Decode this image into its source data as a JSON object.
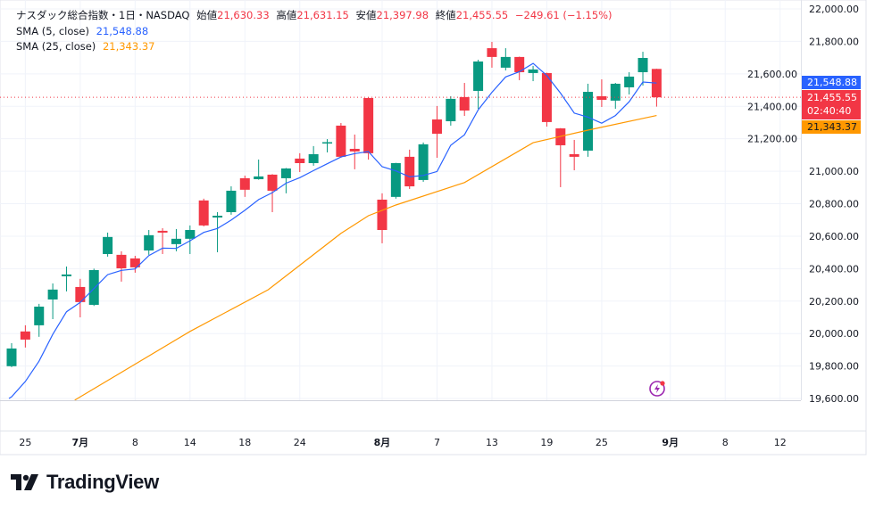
{
  "header": {
    "symbol": "ナスダック総合指数・1日・NASDAQ",
    "open_label": "始値",
    "open": "21,630.33",
    "high_label": "高値",
    "high": "21,631.15",
    "low_label": "安値",
    "low": "21,397.98",
    "close_label": "終値",
    "close": "21,455.55",
    "change": "−249.61 (−1.15%)"
  },
  "indicators": [
    {
      "name": "SMA (5, close)",
      "value": "21,548.88",
      "color": "#2962ff"
    },
    {
      "name": "SMA (25, close)",
      "value": "21,343.37",
      "color": "#ff9800"
    }
  ],
  "price_axis": {
    "ticks": [
      "22,000.00",
      "21,800.00",
      "21,600.00",
      "21,400.00",
      "21,200.00",
      "21,000.00",
      "20,800.00",
      "20,600.00",
      "20,400.00",
      "20,200.00",
      "20,000.00",
      "19,800.00",
      "19,600.00"
    ],
    "last_price_label": "21,455.55",
    "countdown": "02:40:40",
    "sma5_label": "21,548.88",
    "sma25_label": "21,343.37"
  },
  "time_axis": [
    {
      "label": "25",
      "index": 1,
      "bold": false
    },
    {
      "label": "7月",
      "index": 5,
      "bold": true
    },
    {
      "label": "8",
      "index": 9,
      "bold": false
    },
    {
      "label": "14",
      "index": 13,
      "bold": false
    },
    {
      "label": "18",
      "index": 17,
      "bold": false
    },
    {
      "label": "24",
      "index": 21,
      "bold": false
    },
    {
      "label": "8月",
      "index": 27,
      "bold": true
    },
    {
      "label": "7",
      "index": 31,
      "bold": false
    },
    {
      "label": "13",
      "index": 35,
      "bold": false
    },
    {
      "label": "19",
      "index": 39,
      "bold": false
    },
    {
      "label": "25",
      "index": 43,
      "bold": false
    },
    {
      "label": "9月",
      "index": 48,
      "bold": true
    },
    {
      "label": "8",
      "index": 52,
      "bold": false
    },
    {
      "label": "12",
      "index": 56,
      "bold": false
    }
  ],
  "colors": {
    "up": "#089981",
    "down": "#f23645",
    "sma5": "#2962ff",
    "sma25": "#ff9800",
    "grid": "#f0f3fa"
  },
  "chart_data": {
    "type": "candlestick",
    "ylim": [
      19600,
      22000
    ],
    "ohlc": [
      [
        19799,
        19941,
        19793,
        19908
      ],
      [
        20013,
        20051,
        19914,
        19963
      ],
      [
        20051,
        20183,
        19980,
        20166
      ],
      [
        20210,
        20309,
        20089,
        20271
      ],
      [
        20353,
        20413,
        20260,
        20364
      ],
      [
        20287,
        20337,
        20100,
        20194
      ],
      [
        20177,
        20400,
        20170,
        20391
      ],
      [
        20490,
        20622,
        20474,
        20595
      ],
      [
        20485,
        20507,
        20320,
        20402
      ],
      [
        20463,
        20479,
        20375,
        20408
      ],
      [
        20512,
        20638,
        20485,
        20606
      ],
      [
        20633,
        20649,
        20490,
        20622
      ],
      [
        20551,
        20644,
        20507,
        20584
      ],
      [
        20584,
        20666,
        20490,
        20638
      ],
      [
        20820,
        20831,
        20660,
        20666
      ],
      [
        20715,
        20748,
        20501,
        20726
      ],
      [
        20748,
        20907,
        20732,
        20880
      ],
      [
        20957,
        20973,
        20842,
        20886
      ],
      [
        20951,
        21072,
        20948,
        20968
      ],
      [
        20979,
        20982,
        20748,
        20880
      ],
      [
        20957,
        21020,
        20864,
        21017
      ],
      [
        21078,
        21111,
        20995,
        21050
      ],
      [
        21050,
        21155,
        21034,
        21105
      ],
      [
        21174,
        21198,
        21116,
        21179
      ],
      [
        21281,
        21297,
        21083,
        21089
      ],
      [
        21138,
        21226,
        21012,
        21122
      ],
      [
        21451,
        21455,
        21072,
        21111
      ],
      [
        20825,
        20864,
        20556,
        20638
      ],
      [
        20842,
        21052,
        20831,
        21050
      ],
      [
        21089,
        21133,
        20891,
        20907
      ],
      [
        20946,
        21177,
        20935,
        21166
      ],
      [
        21319,
        21402,
        21083,
        21231
      ],
      [
        21308,
        21462,
        21281,
        21446
      ],
      [
        21457,
        21544,
        21341,
        21374
      ],
      [
        21495,
        21687,
        21385,
        21676
      ],
      [
        21758,
        21797,
        21638,
        21704
      ],
      [
        21638,
        21758,
        21621,
        21704
      ],
      [
        21704,
        21706,
        21561,
        21610
      ],
      [
        21605,
        21649,
        21555,
        21627
      ],
      [
        21605,
        21607,
        21275,
        21303
      ],
      [
        21264,
        21266,
        20902,
        21160
      ],
      [
        21105,
        21193,
        21006,
        21089
      ],
      [
        21127,
        21539,
        21089,
        21489
      ],
      [
        21462,
        21566,
        21396,
        21440
      ],
      [
        21435,
        21544,
        21385,
        21539
      ],
      [
        21517,
        21610,
        21473,
        21583
      ],
      [
        21610,
        21736,
        21528,
        21698
      ],
      [
        21630.33,
        21631.15,
        21397.98,
        21455.55
      ]
    ],
    "sma5_early": [
      19610,
      19705,
      19830,
      19995
    ],
    "sma25_points": [
      [
        4.6,
        19590
      ],
      [
        13,
        20013
      ],
      [
        18.7,
        20270
      ],
      [
        24,
        20617
      ],
      [
        26,
        20726
      ],
      [
        28,
        20792
      ],
      [
        33,
        20930
      ],
      [
        38,
        21176
      ],
      [
        42,
        21253
      ],
      [
        47,
        21343.37
      ]
    ]
  }
}
